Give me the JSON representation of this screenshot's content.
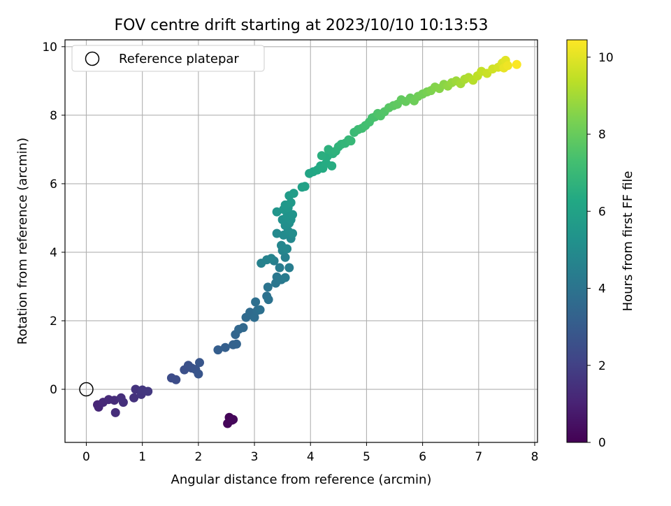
{
  "chart_data": {
    "type": "scatter",
    "title": "FOV centre drift starting at 2023/10/10 10:13:53",
    "xlabel": "Angular distance from reference (arcmin)",
    "ylabel": "Rotation from reference (arcmin)",
    "xlim": [
      -0.38,
      8.05
    ],
    "ylim": [
      -1.55,
      10.2
    ],
    "x_ticks": [
      0,
      1,
      2,
      3,
      4,
      5,
      6,
      7,
      8
    ],
    "y_ticks": [
      0,
      2,
      4,
      6,
      8,
      10
    ],
    "grid": true,
    "legend": {
      "position": "top-left",
      "entries": [
        "Reference platepar"
      ]
    },
    "reference_point": {
      "x": 0,
      "y": 0
    },
    "colorbar": {
      "label": "Hours from first FF file",
      "range": [
        0,
        10.45
      ],
      "ticks": [
        0,
        2,
        4,
        6,
        8,
        10
      ],
      "colormap": "viridis"
    },
    "points": [
      {
        "x": 2.55,
        "y": -0.82,
        "c": 0.1
      },
      {
        "x": 2.6,
        "y": -0.9,
        "c": 0.12
      },
      {
        "x": 2.52,
        "y": -1.0,
        "c": 0.15
      },
      {
        "x": 2.62,
        "y": -0.88,
        "c": 0.18
      },
      {
        "x": 0.2,
        "y": -0.45,
        "c": 1.1
      },
      {
        "x": 0.22,
        "y": -0.52,
        "c": 1.15
      },
      {
        "x": 0.3,
        "y": -0.38,
        "c": 1.2
      },
      {
        "x": 0.4,
        "y": -0.3,
        "c": 1.25
      },
      {
        "x": 0.5,
        "y": -0.32,
        "c": 1.3
      },
      {
        "x": 0.52,
        "y": -0.68,
        "c": 1.35
      },
      {
        "x": 0.62,
        "y": -0.25,
        "c": 1.4
      },
      {
        "x": 0.66,
        "y": -0.38,
        "c": 1.45
      },
      {
        "x": 0.85,
        "y": -0.25,
        "c": 1.5
      },
      {
        "x": 0.88,
        "y": 0.0,
        "c": 1.55
      },
      {
        "x": 0.98,
        "y": -0.15,
        "c": 1.6
      },
      {
        "x": 1.0,
        "y": -0.02,
        "c": 1.65
      },
      {
        "x": 1.1,
        "y": -0.06,
        "c": 1.7
      },
      {
        "x": 1.52,
        "y": 0.33,
        "c": 2.4
      },
      {
        "x": 1.6,
        "y": 0.28,
        "c": 2.45
      },
      {
        "x": 1.75,
        "y": 0.57,
        "c": 2.55
      },
      {
        "x": 1.82,
        "y": 0.7,
        "c": 2.6
      },
      {
        "x": 1.88,
        "y": 0.62,
        "c": 2.65
      },
      {
        "x": 1.95,
        "y": 0.58,
        "c": 2.7
      },
      {
        "x": 2.0,
        "y": 0.45,
        "c": 2.75
      },
      {
        "x": 2.02,
        "y": 0.78,
        "c": 2.8
      },
      {
        "x": 2.35,
        "y": 1.15,
        "c": 3.1
      },
      {
        "x": 2.48,
        "y": 1.22,
        "c": 3.15
      },
      {
        "x": 2.62,
        "y": 1.3,
        "c": 3.25
      },
      {
        "x": 2.68,
        "y": 1.32,
        "c": 3.3
      },
      {
        "x": 2.66,
        "y": 1.6,
        "c": 3.4
      },
      {
        "x": 2.72,
        "y": 1.75,
        "c": 3.45
      },
      {
        "x": 2.8,
        "y": 1.8,
        "c": 3.5
      },
      {
        "x": 2.85,
        "y": 2.1,
        "c": 3.6
      },
      {
        "x": 2.92,
        "y": 2.25,
        "c": 3.65
      },
      {
        "x": 3.0,
        "y": 2.1,
        "c": 3.7
      },
      {
        "x": 3.05,
        "y": 2.3,
        "c": 3.75
      },
      {
        "x": 3.02,
        "y": 2.55,
        "c": 3.8
      },
      {
        "x": 3.1,
        "y": 2.32,
        "c": 3.85
      },
      {
        "x": 3.22,
        "y": 2.72,
        "c": 3.9
      },
      {
        "x": 3.25,
        "y": 2.62,
        "c": 3.95
      },
      {
        "x": 3.24,
        "y": 2.98,
        "c": 4.0
      },
      {
        "x": 3.38,
        "y": 3.1,
        "c": 4.1
      },
      {
        "x": 3.4,
        "y": 3.28,
        "c": 4.15
      },
      {
        "x": 3.48,
        "y": 3.2,
        "c": 4.2
      },
      {
        "x": 3.55,
        "y": 3.26,
        "c": 4.3
      },
      {
        "x": 3.45,
        "y": 3.55,
        "c": 4.35
      },
      {
        "x": 3.62,
        "y": 3.55,
        "c": 4.4
      },
      {
        "x": 3.35,
        "y": 3.75,
        "c": 4.45
      },
      {
        "x": 3.55,
        "y": 3.85,
        "c": 4.5
      },
      {
        "x": 3.12,
        "y": 3.68,
        "c": 4.55
      },
      {
        "x": 3.22,
        "y": 3.78,
        "c": 4.6
      },
      {
        "x": 3.3,
        "y": 3.82,
        "c": 4.65
      },
      {
        "x": 3.5,
        "y": 4.05,
        "c": 4.7
      },
      {
        "x": 3.48,
        "y": 4.2,
        "c": 4.75
      },
      {
        "x": 3.58,
        "y": 4.1,
        "c": 4.8
      },
      {
        "x": 3.65,
        "y": 4.4,
        "c": 4.85
      },
      {
        "x": 3.4,
        "y": 4.55,
        "c": 4.9
      },
      {
        "x": 3.52,
        "y": 4.5,
        "c": 4.95
      },
      {
        "x": 3.6,
        "y": 4.62,
        "c": 5.0
      },
      {
        "x": 3.68,
        "y": 4.55,
        "c": 5.05
      },
      {
        "x": 3.55,
        "y": 4.78,
        "c": 5.1
      },
      {
        "x": 3.62,
        "y": 4.85,
        "c": 5.15
      },
      {
        "x": 3.5,
        "y": 4.95,
        "c": 5.2
      },
      {
        "x": 3.65,
        "y": 4.95,
        "c": 5.25
      },
      {
        "x": 3.58,
        "y": 5.05,
        "c": 5.3
      },
      {
        "x": 3.68,
        "y": 5.1,
        "c": 5.35
      },
      {
        "x": 3.4,
        "y": 5.18,
        "c": 5.4
      },
      {
        "x": 3.52,
        "y": 5.25,
        "c": 5.45
      },
      {
        "x": 3.6,
        "y": 5.3,
        "c": 5.5
      },
      {
        "x": 3.55,
        "y": 5.38,
        "c": 5.55
      },
      {
        "x": 3.65,
        "y": 5.45,
        "c": 5.6
      },
      {
        "x": 3.62,
        "y": 5.65,
        "c": 5.7
      },
      {
        "x": 3.7,
        "y": 5.72,
        "c": 5.75
      },
      {
        "x": 3.85,
        "y": 5.9,
        "c": 5.9
      },
      {
        "x": 3.9,
        "y": 5.92,
        "c": 5.95
      },
      {
        "x": 3.98,
        "y": 6.3,
        "c": 6.1
      },
      {
        "x": 4.05,
        "y": 6.35,
        "c": 6.2
      },
      {
        "x": 4.12,
        "y": 6.4,
        "c": 6.25
      },
      {
        "x": 4.18,
        "y": 6.52,
        "c": 6.3
      },
      {
        "x": 4.22,
        "y": 6.45,
        "c": 6.35
      },
      {
        "x": 4.28,
        "y": 6.6,
        "c": 6.4
      },
      {
        "x": 4.38,
        "y": 6.52,
        "c": 6.45
      },
      {
        "x": 4.3,
        "y": 6.8,
        "c": 6.5
      },
      {
        "x": 4.2,
        "y": 6.82,
        "c": 6.55
      },
      {
        "x": 4.4,
        "y": 6.88,
        "c": 6.6
      },
      {
        "x": 4.32,
        "y": 7.0,
        "c": 6.65
      },
      {
        "x": 4.45,
        "y": 6.95,
        "c": 6.7
      },
      {
        "x": 4.5,
        "y": 7.08,
        "c": 6.75
      },
      {
        "x": 4.55,
        "y": 7.15,
        "c": 6.8
      },
      {
        "x": 4.62,
        "y": 7.18,
        "c": 6.85
      },
      {
        "x": 4.68,
        "y": 7.28,
        "c": 6.9
      },
      {
        "x": 4.72,
        "y": 7.25,
        "c": 6.95
      },
      {
        "x": 4.78,
        "y": 7.5,
        "c": 7.05
      },
      {
        "x": 4.85,
        "y": 7.58,
        "c": 7.1
      },
      {
        "x": 4.92,
        "y": 7.62,
        "c": 7.2
      },
      {
        "x": 4.98,
        "y": 7.7,
        "c": 7.25
      },
      {
        "x": 5.05,
        "y": 7.8,
        "c": 7.3
      },
      {
        "x": 5.1,
        "y": 7.92,
        "c": 7.35
      },
      {
        "x": 5.15,
        "y": 7.95,
        "c": 7.4
      },
      {
        "x": 5.2,
        "y": 8.05,
        "c": 7.5
      },
      {
        "x": 5.25,
        "y": 7.98,
        "c": 7.55
      },
      {
        "x": 5.32,
        "y": 8.1,
        "c": 7.6
      },
      {
        "x": 5.4,
        "y": 8.22,
        "c": 7.7
      },
      {
        "x": 5.48,
        "y": 8.28,
        "c": 7.8
      },
      {
        "x": 5.55,
        "y": 8.32,
        "c": 7.85
      },
      {
        "x": 5.62,
        "y": 8.45,
        "c": 7.9
      },
      {
        "x": 5.7,
        "y": 8.4,
        "c": 7.95
      },
      {
        "x": 5.78,
        "y": 8.5,
        "c": 8.0
      },
      {
        "x": 5.85,
        "y": 8.42,
        "c": 8.1
      },
      {
        "x": 5.92,
        "y": 8.55,
        "c": 8.15
      },
      {
        "x": 6.0,
        "y": 8.62,
        "c": 8.2
      },
      {
        "x": 6.08,
        "y": 8.68,
        "c": 8.3
      },
      {
        "x": 6.15,
        "y": 8.72,
        "c": 8.4
      },
      {
        "x": 6.22,
        "y": 8.82,
        "c": 8.5
      },
      {
        "x": 6.3,
        "y": 8.78,
        "c": 8.55
      },
      {
        "x": 6.38,
        "y": 8.9,
        "c": 8.6
      },
      {
        "x": 6.45,
        "y": 8.85,
        "c": 8.7
      },
      {
        "x": 6.52,
        "y": 8.95,
        "c": 8.8
      },
      {
        "x": 6.6,
        "y": 9.0,
        "c": 8.9
      },
      {
        "x": 6.68,
        "y": 8.92,
        "c": 9.0
      },
      {
        "x": 6.75,
        "y": 9.05,
        "c": 9.1
      },
      {
        "x": 6.82,
        "y": 9.1,
        "c": 9.2
      },
      {
        "x": 6.9,
        "y": 9.02,
        "c": 9.3
      },
      {
        "x": 6.98,
        "y": 9.15,
        "c": 9.4
      },
      {
        "x": 7.05,
        "y": 9.28,
        "c": 9.5
      },
      {
        "x": 7.15,
        "y": 9.22,
        "c": 9.6
      },
      {
        "x": 7.25,
        "y": 9.35,
        "c": 9.7
      },
      {
        "x": 7.35,
        "y": 9.4,
        "c": 9.8
      },
      {
        "x": 7.42,
        "y": 9.52,
        "c": 9.9
      },
      {
        "x": 7.48,
        "y": 9.6,
        "c": 10.0
      },
      {
        "x": 7.45,
        "y": 9.38,
        "c": 10.1
      },
      {
        "x": 7.52,
        "y": 9.45,
        "c": 10.2
      },
      {
        "x": 7.68,
        "y": 9.48,
        "c": 10.4
      }
    ]
  }
}
